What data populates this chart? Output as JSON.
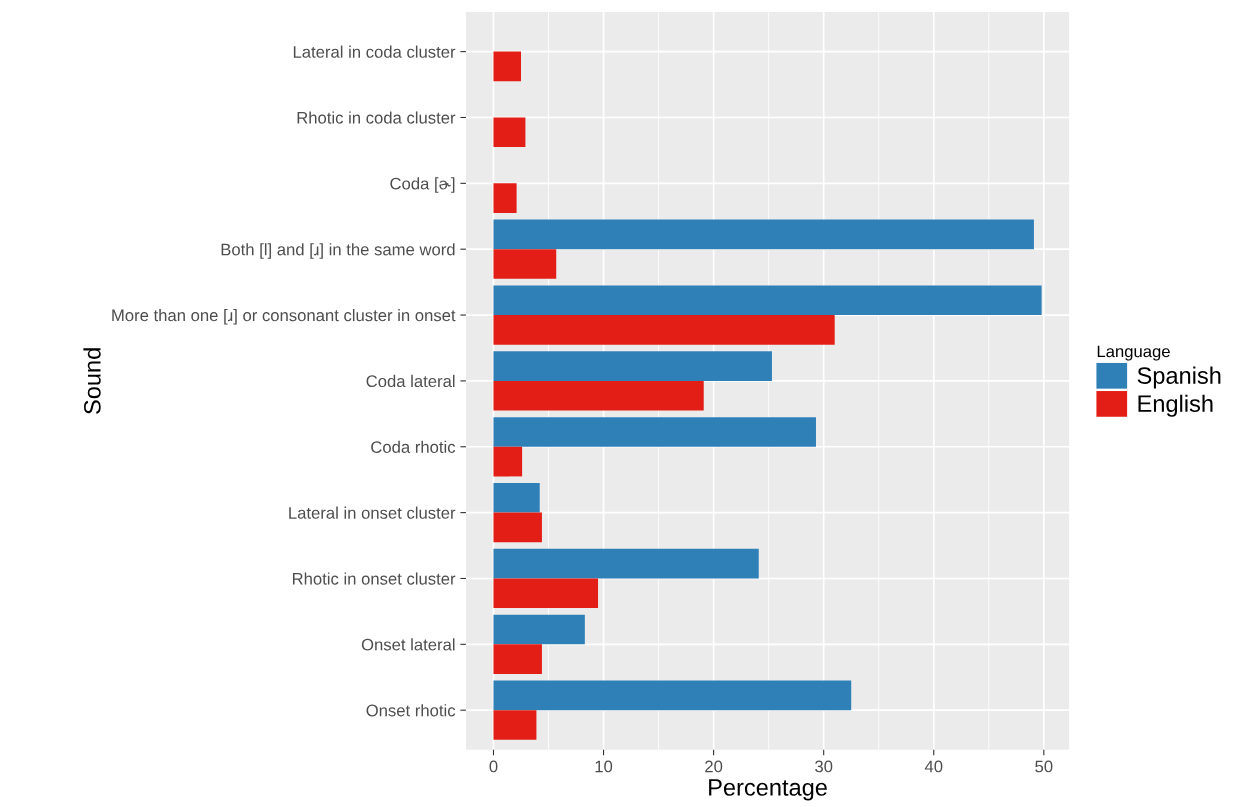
{
  "chart_data": {
    "type": "bar",
    "orientation": "horizontal",
    "xlabel": "Percentage",
    "ylabel": "Sound",
    "legend_title": "Language",
    "legend": "right",
    "grid": true,
    "categories": [
      "Lateral in coda cluster",
      "Rhotic in coda cluster",
      "Coda [ɚ]",
      "Both [l] and [ɹ] in the same word",
      "More than one [ɹ] or consonant cluster in onset",
      "Coda lateral",
      "Coda rhotic",
      "Lateral in onset cluster",
      "Rhotic in onset cluster",
      "Onset lateral",
      "Onset rhotic"
    ],
    "series": [
      {
        "name": "Spanish",
        "color": "#3080b8",
        "values": [
          null,
          null,
          null,
          49.1,
          49.8,
          25.3,
          29.3,
          4.2,
          24.1,
          8.3,
          32.5
        ]
      },
      {
        "name": "English",
        "color": "#e31e16",
        "values": [
          2.5,
          2.9,
          2.1,
          5.7,
          31.0,
          19.1,
          2.6,
          4.4,
          9.5,
          4.4,
          3.9
        ]
      }
    ],
    "xlim": [
      -2.5,
      52.3
    ],
    "xticks": [
      0,
      10,
      20,
      30,
      40,
      50
    ]
  }
}
